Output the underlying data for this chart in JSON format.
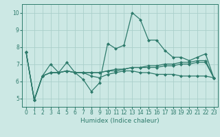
{
  "title": "",
  "xlabel": "Humidex (Indice chaleur)",
  "ylabel": "",
  "bg_color": "#cce8e4",
  "line_color": "#2d7a6b",
  "grid_color": "#aacfca",
  "xlim": [
    -0.5,
    23.5
  ],
  "ylim": [
    4.5,
    10.5
  ],
  "yticks": [
    5,
    6,
    7,
    8,
    9,
    10
  ],
  "xticks": [
    0,
    1,
    2,
    3,
    4,
    5,
    6,
    7,
    8,
    9,
    10,
    11,
    12,
    13,
    14,
    15,
    16,
    17,
    18,
    19,
    20,
    21,
    22,
    23
  ],
  "series": [
    [
      7.7,
      4.9,
      6.3,
      7.0,
      6.5,
      7.1,
      6.5,
      6.1,
      5.4,
      5.9,
      8.2,
      7.9,
      8.1,
      10.0,
      9.6,
      8.4,
      8.4,
      7.8,
      7.4,
      7.4,
      7.2,
      7.4,
      7.6,
      6.2
    ],
    [
      7.7,
      4.9,
      6.3,
      6.5,
      6.5,
      6.6,
      6.5,
      6.5,
      6.5,
      6.5,
      6.6,
      6.6,
      6.7,
      6.8,
      6.8,
      6.8,
      6.8,
      6.9,
      6.9,
      7.0,
      7.0,
      7.1,
      7.1,
      6.2
    ],
    [
      7.7,
      4.9,
      6.3,
      6.5,
      6.5,
      6.6,
      6.5,
      6.5,
      6.5,
      6.5,
      6.6,
      6.7,
      6.7,
      6.8,
      6.8,
      6.9,
      6.9,
      7.0,
      7.0,
      7.1,
      7.1,
      7.2,
      7.2,
      6.2
    ],
    [
      7.7,
      4.9,
      6.3,
      6.5,
      6.5,
      6.6,
      6.5,
      6.5,
      6.3,
      6.2,
      6.4,
      6.5,
      6.6,
      6.6,
      6.5,
      6.5,
      6.4,
      6.4,
      6.4,
      6.3,
      6.3,
      6.3,
      6.3,
      6.2
    ]
  ],
  "marker": "D",
  "markersize": 2.0,
  "linewidth": 0.9,
  "tick_fontsize": 5.5,
  "xlabel_fontsize": 6.5
}
